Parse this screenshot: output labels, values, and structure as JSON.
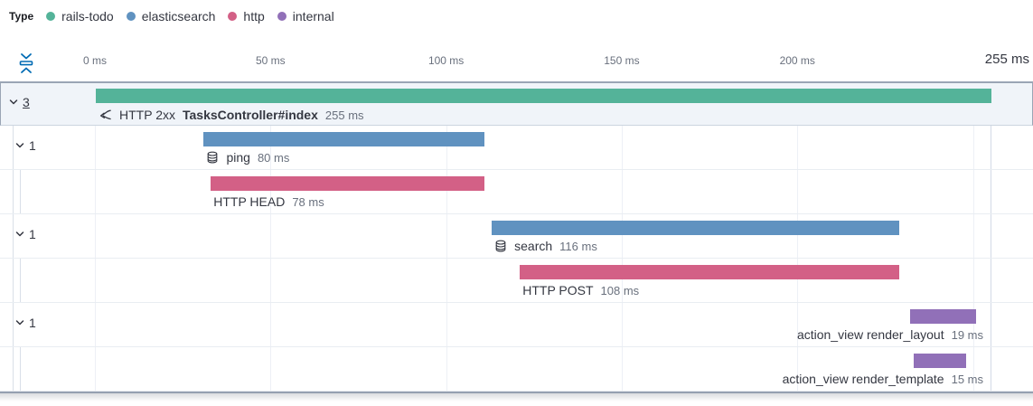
{
  "legend": {
    "title": "Type",
    "items": [
      {
        "label": "rails-todo",
        "color": "#54B399"
      },
      {
        "label": "elasticsearch",
        "color": "#6092C0"
      },
      {
        "label": "http",
        "color": "#D36086"
      },
      {
        "label": "internal",
        "color": "#9170B8"
      }
    ]
  },
  "axis": {
    "ticks": [
      {
        "label": "0 ms",
        "ms": 0
      },
      {
        "label": "50 ms",
        "ms": 50
      },
      {
        "label": "100 ms",
        "ms": 100
      },
      {
        "label": "150 ms",
        "ms": 150
      },
      {
        "label": "200 ms",
        "ms": 200
      }
    ],
    "end_label": "255 ms"
  },
  "chart_data": {
    "type": "waterfall-timeline",
    "unit": "ms",
    "xlim": [
      0,
      255
    ],
    "grid_ms": [
      0,
      50,
      100,
      150,
      200,
      250
    ],
    "items": [
      {
        "service": "rails-todo",
        "color": "#54B399",
        "icon": "transaction-icon",
        "badge": "HTTP 2xx",
        "name": "TasksController#index",
        "name_bold": true,
        "duration_label": "255 ms",
        "start_ms": 0,
        "duration_ms": 255,
        "children_count": "3",
        "label_align": "left",
        "selected": true
      },
      {
        "service": "elasticsearch",
        "color": "#6092C0",
        "icon": "database-icon",
        "badge": "",
        "name": "ping",
        "name_bold": false,
        "duration_label": "80 ms",
        "start_ms": 31,
        "duration_ms": 80,
        "children_count": "1",
        "label_align": "left"
      },
      {
        "service": "http",
        "color": "#D36086",
        "icon": "",
        "badge": "",
        "name": "HTTP HEAD",
        "name_bold": false,
        "duration_label": "78 ms",
        "start_ms": 33,
        "duration_ms": 78,
        "children_count": "",
        "label_align": "left"
      },
      {
        "service": "elasticsearch",
        "color": "#6092C0",
        "icon": "database-icon",
        "badge": "",
        "name": "search",
        "name_bold": false,
        "duration_label": "116 ms",
        "start_ms": 113,
        "duration_ms": 116,
        "children_count": "1",
        "label_align": "left"
      },
      {
        "service": "http",
        "color": "#D36086",
        "icon": "",
        "badge": "",
        "name": "HTTP POST",
        "name_bold": false,
        "duration_label": "108 ms",
        "start_ms": 121,
        "duration_ms": 108,
        "children_count": "",
        "label_align": "left"
      },
      {
        "service": "internal",
        "color": "#9170B8",
        "icon": "",
        "badge": "",
        "name": "action_view render_layout",
        "name_bold": false,
        "duration_label": "19 ms",
        "start_ms": 232,
        "duration_ms": 19,
        "children_count": "1",
        "label_align": "right"
      },
      {
        "service": "internal",
        "color": "#9170B8",
        "icon": "",
        "badge": "",
        "name": "action_view render_template",
        "name_bold": false,
        "duration_label": "15 ms",
        "start_ms": 233,
        "duration_ms": 15,
        "children_count": "",
        "label_align": "right"
      }
    ]
  }
}
